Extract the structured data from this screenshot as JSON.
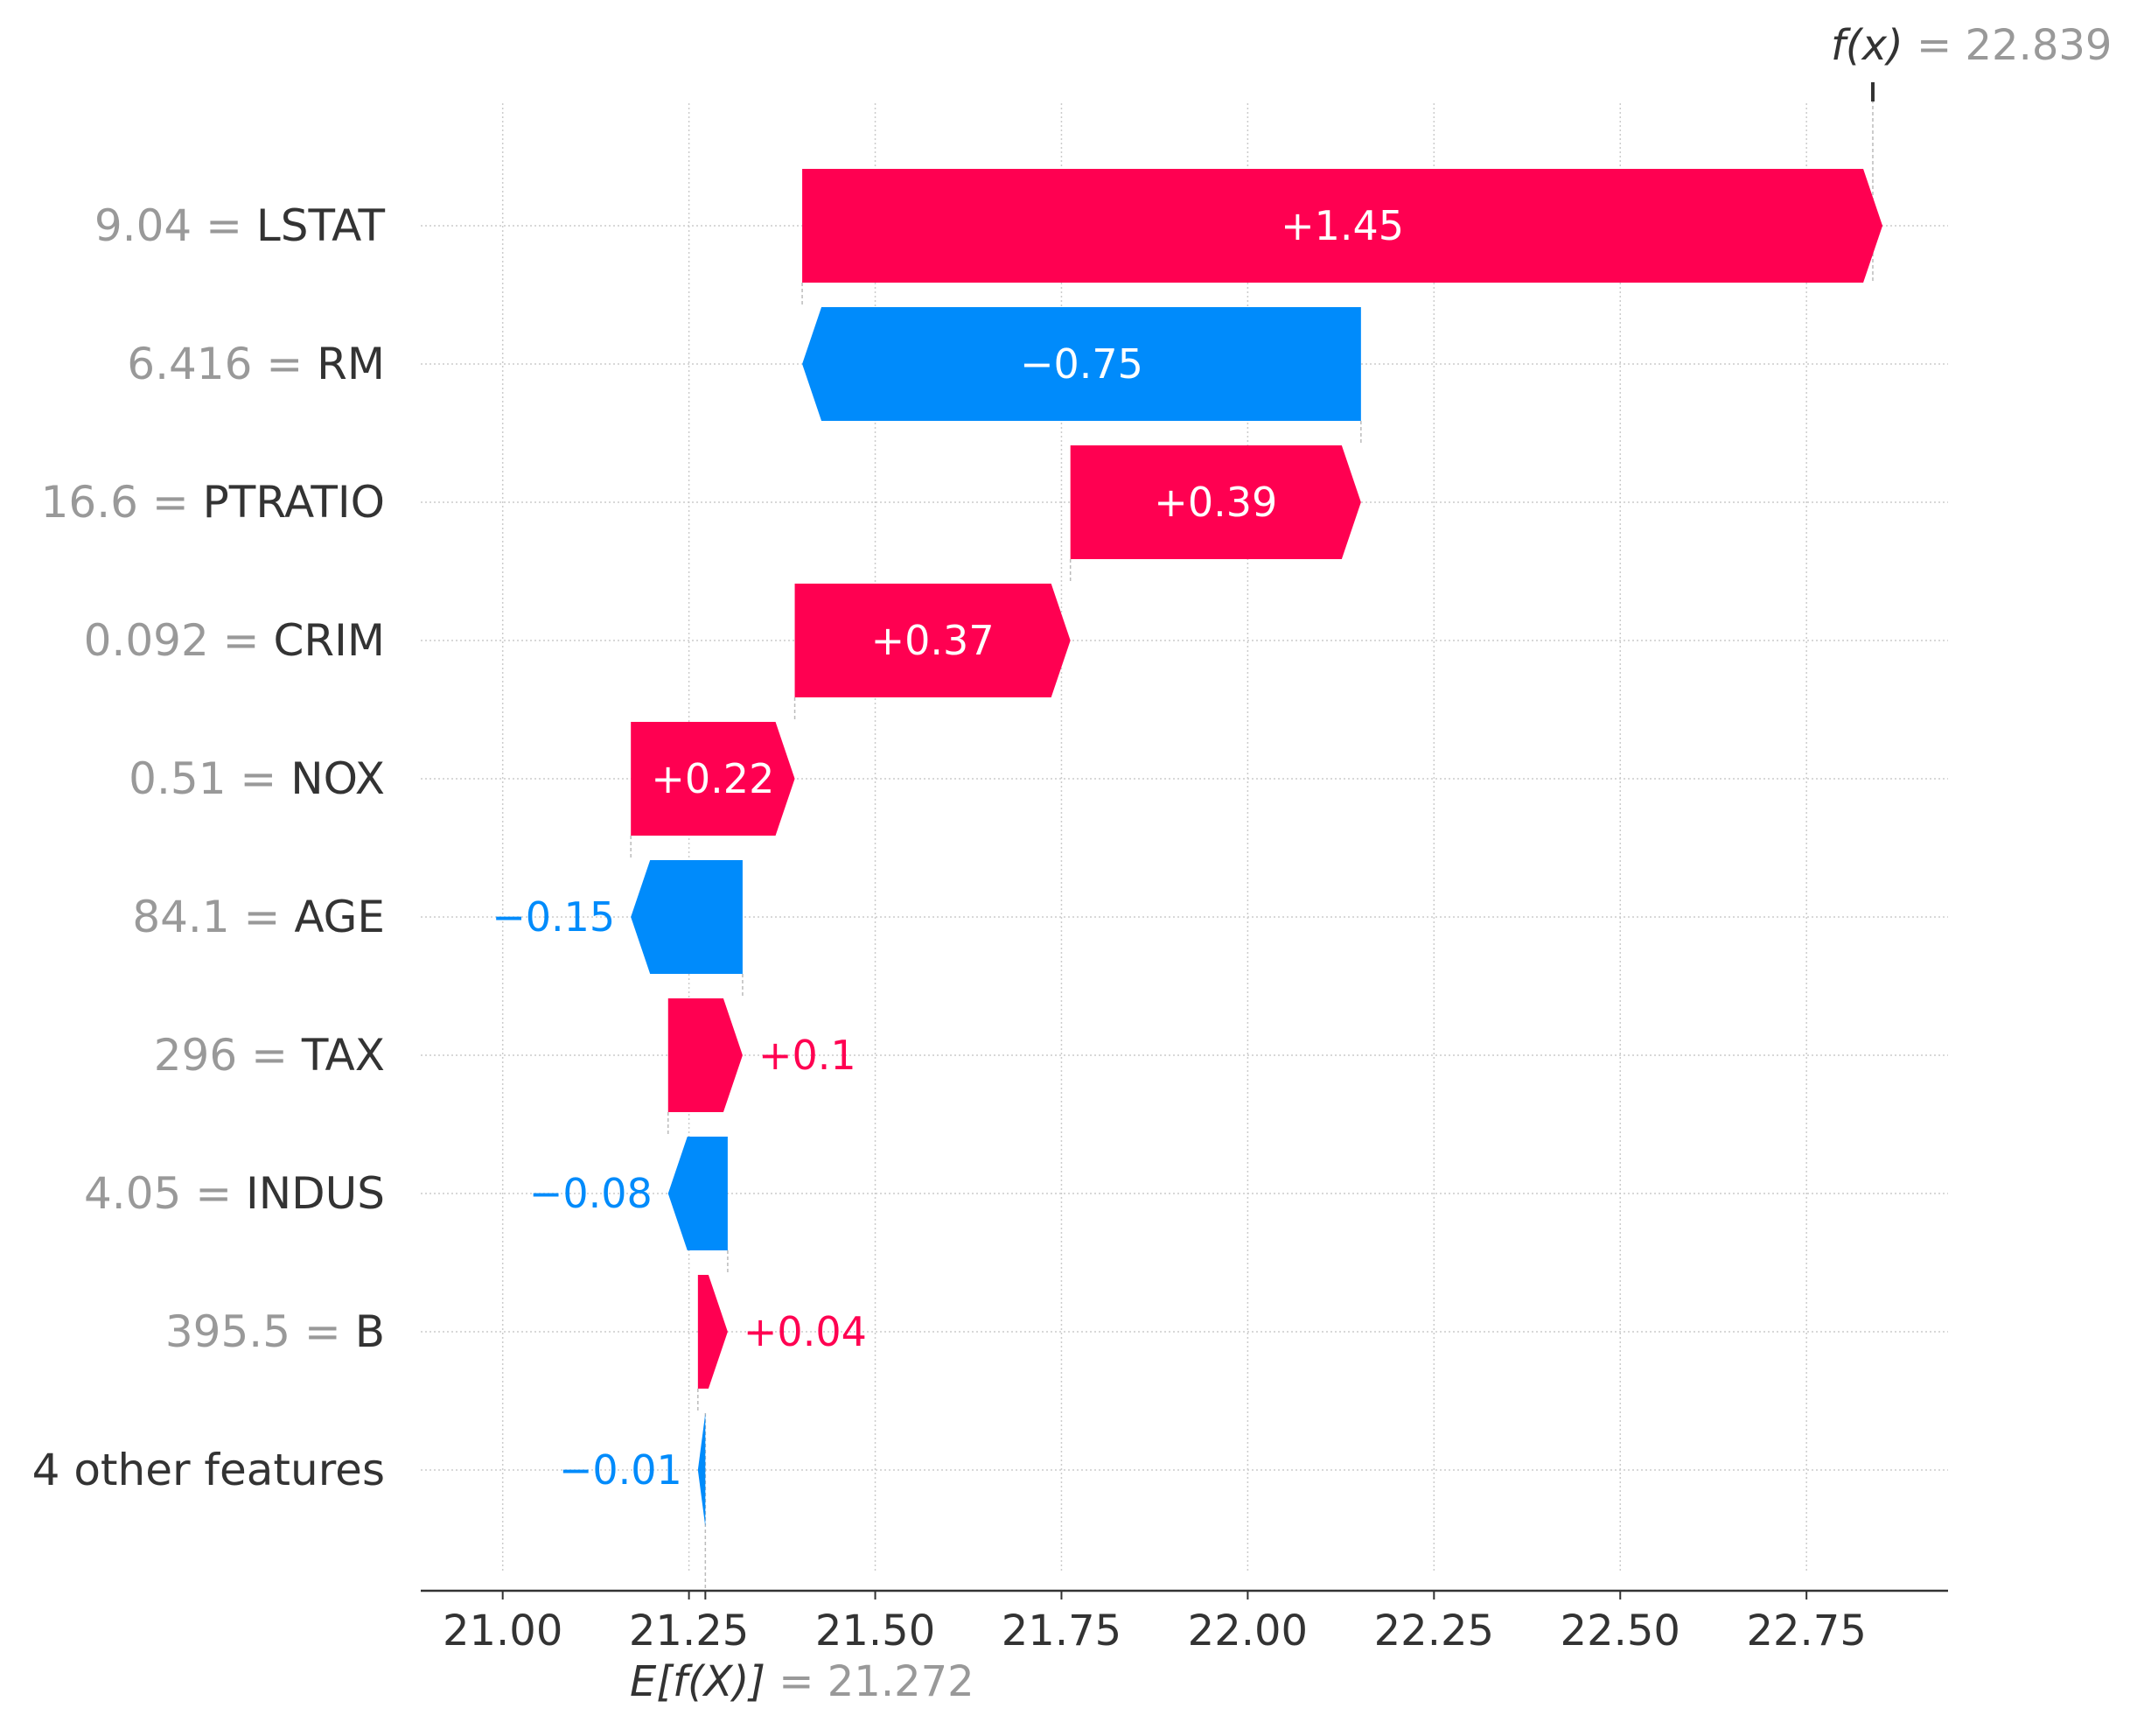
{
  "chart_data": {
    "type": "waterfall",
    "base_value": 21.272,
    "output_value": 22.839,
    "base_label": {
      "sym": "E[f(X)]",
      "eq": " = ",
      "value": "21.272"
    },
    "output_label": {
      "sym": "f(x)",
      "eq": " = ",
      "value": "22.839"
    },
    "features": [
      {
        "value": "9.04",
        "name": "LSTAT",
        "contribution": 1.45,
        "label": "+1.45"
      },
      {
        "value": "6.416",
        "name": "RM",
        "contribution": -0.75,
        "label": "−0.75"
      },
      {
        "value": "16.6",
        "name": "PTRATIO",
        "contribution": 0.39,
        "label": "+0.39"
      },
      {
        "value": "0.092",
        "name": "CRIM",
        "contribution": 0.37,
        "label": "+0.37"
      },
      {
        "value": "0.51",
        "name": "NOX",
        "contribution": 0.22,
        "label": "+0.22"
      },
      {
        "value": "84.1",
        "name": "AGE",
        "contribution": -0.15,
        "label": "−0.15"
      },
      {
        "value": "296",
        "name": "TAX",
        "contribution": 0.1,
        "label": "+0.1"
      },
      {
        "value": "4.05",
        "name": "INDUS",
        "contribution": -0.08,
        "label": "−0.08"
      },
      {
        "value": "395.5",
        "name": "B",
        "contribution": 0.04,
        "label": "+0.04"
      },
      {
        "value": "",
        "name": "4 other features",
        "contribution": -0.01,
        "label": "−0.01"
      }
    ],
    "xlim": [
      20.89,
      22.94
    ],
    "xticks": [
      21.0,
      21.25,
      21.5,
      21.75,
      22.0,
      22.25,
      22.5,
      22.75
    ],
    "xtick_labels": [
      "21.00",
      "21.25",
      "21.50",
      "21.75",
      "22.00",
      "22.25",
      "22.50",
      "22.75"
    ],
    "colors": {
      "positive": "#ff0051",
      "negative": "#008bfb"
    }
  }
}
